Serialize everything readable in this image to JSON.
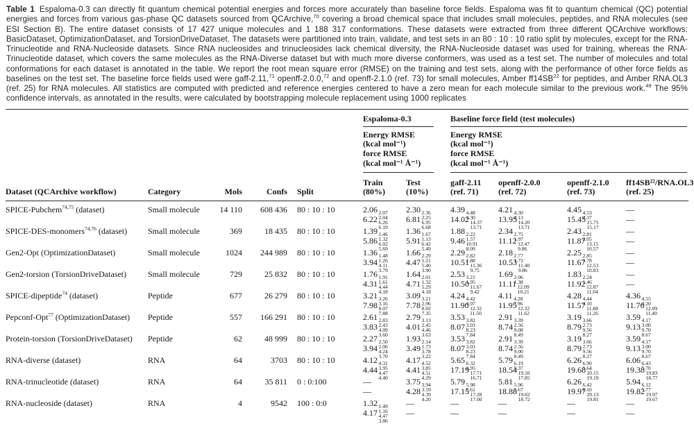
{
  "caption": {
    "segments": [
      {
        "b": "Table 1"
      },
      {
        "t": "Espaloma-0.3 can directly fit quantum chemical potential energies and forces more accurately than baseline force fields. Espaloma was fit to quantum chemical (QC) potential energies and forces from various gas-phase QC datasets sourced from QCArchive,"
      },
      {
        "s": "70"
      },
      {
        "t": " covering a broad chemical space that includes small molecules, peptides, and RNA molecules (see ESI Section B). The entire dataset consists of 17 427 unique molecules and 1 188 317 conformations. These datasets were extracted from three different QCArchive workflows: BasicDataset, OptimizationDataset, and TorsionDriveDataset. The datasets were partitioned into train, validate, and test sets in an 80 : 10 : 10 ratio split by molecules, except for the RNA-Trinucleotide and RNA-Nucleoside datasets. Since RNA nucleosides and trinucleosides lack chemical diversity, the RNA-Nucleoside dataset was used for training, whereas the RNA-Trinucleotide dataset, which covers the same molecules as the RNA-Diverse dataset but with much more diverse conformers, was used as a test set. The number of molecules and total conformations for each dataset is annotated in the table. We report the root mean square error (RMSE) on the training and test sets, along with the performance of other force fields as baselines on the test set. The baseline force fields used were gaff-2.11,"
      },
      {
        "s": "71"
      },
      {
        "t": " openff-2.0.0,"
      },
      {
        "s": "72"
      },
      {
        "t": " and openff-2.1.0 (ref. 73) for small molecules, Amber ff14SB"
      },
      {
        "s": "22"
      },
      {
        "t": " for peptides, and Amber RNA.OL3 (ref. 25) for RNA molecules. All statistics are computed with predicted and reference energies centered to have a zero mean for each molecule similar to the previous work."
      },
      {
        "s": "49"
      },
      {
        "t": " The 95% confidence intervals, as annotated in the results, were calculated by bootstrapping molecule replacement using 1000 replicates"
      }
    ]
  },
  "header": {
    "espaloma_group": "Espaloma-0.3",
    "baseline_group": "Baseline force field (test molecules)",
    "rmse_lines": [
      "Energy RMSE",
      "(kcal mol⁻¹)",
      "force RMSE",
      "(kcal mol⁻¹ Å⁻¹)"
    ],
    "columns_left": [
      "Dataset (QCArchive workflow)",
      "Category",
      "Mols",
      "Confs",
      "Split"
    ],
    "columns_values": [
      [
        "Train",
        "(80%)"
      ],
      [
        "Test",
        "(10%)"
      ],
      [
        "gaff-2.11",
        "(ref. 71)"
      ],
      [
        "openff-2.0.0",
        "(ref. 72)"
      ],
      [
        "openff-2.1.0",
        "(ref. 73)"
      ],
      [
        "ff14SB²²/RNA.OL3",
        "(ref. 25)"
      ]
    ]
  },
  "rows": [
    {
      "dataset": {
        "name": "SPICE-Pubchem",
        "sup": "74,75",
        "tail": " (dataset)"
      },
      "category": "Small molecule",
      "mols": "14 110",
      "confs": "608 436",
      "split": "80 : 10 : 10",
      "values": [
        {
          "e": [
            "2.06",
            "2.07",
            "2.04"
          ],
          "f": [
            "6.22",
            "6.26",
            "6.19"
          ]
        },
        {
          "e": [
            "2.30",
            "2.36",
            "2.25"
          ],
          "f": [
            "6.81",
            "6.95",
            "6.68"
          ]
        },
        {
          "e": [
            "4.39",
            "4.48",
            "4.30"
          ],
          "f": [
            "14.02",
            "14.37",
            "13.71"
          ]
        },
        {
          "e": [
            "4.21",
            "4.30",
            "4.13"
          ],
          "f": [
            "13.95",
            "14.20",
            "13.71"
          ]
        },
        {
          "e": [
            "4.45",
            "4.53",
            "4.37"
          ],
          "f": [
            "15.45",
            "15.75",
            "15.17"
          ]
        },
        {
          "e": "—",
          "f": "—"
        }
      ]
    },
    {
      "dataset": {
        "name": "SPICE-DES-monomers",
        "sup": "74,76",
        "tail": " (dataset)"
      },
      "category": "Small molecule",
      "mols": "369",
      "confs": "18 435",
      "split": "80 : 10 : 10",
      "values": [
        {
          "e": [
            "1.39",
            "1.46",
            "1.32"
          ],
          "f": [
            "5.86",
            "6.02",
            "5.69"
          ]
        },
        {
          "e": [
            "1.36",
            "1.67",
            "1.13"
          ],
          "f": [
            "5.91",
            "6.42",
            "5.49"
          ]
        },
        {
          "e": [
            "1.88",
            "2.22",
            "1.57"
          ],
          "f": [
            "9.46",
            "10.91",
            "8.09"
          ]
        },
        {
          "e": [
            "2.34",
            "2.75",
            "1.97"
          ],
          "f": [
            "11.12",
            "12.47",
            "9.86"
          ]
        },
        {
          "e": [
            "2.43",
            "2.81",
            "2.05"
          ],
          "f": [
            "11.87",
            "13.15",
            "10.57"
          ]
        },
        {
          "e": "—",
          "f": "—"
        }
      ]
    },
    {
      "dataset": {
        "name": "Gen2-Opt",
        "sup": "",
        "tail": " (OptimizationDataset)"
      },
      "category": "Small molecule",
      "mols": "1024",
      "confs": "244 989",
      "split": "80 : 10 : 10",
      "values": [
        {
          "e": [
            "1.36",
            "1.48",
            "1.26"
          ],
          "f": [
            "3.94",
            "4.11",
            "3.79"
          ]
        },
        {
          "e": [
            "1.66",
            "2.29",
            "1.21"
          ],
          "f": [
            "4.47",
            "5.40",
            "3.90"
          ]
        },
        {
          "e": [
            "2.29",
            "2.82",
            "1.88"
          ],
          "f": [
            "10.51",
            "11.36",
            "9.75"
          ]
        },
        {
          "e": [
            "2.18",
            "2.77",
            "1.73"
          ],
          "f": [
            "10.53",
            "11.40",
            "9.86"
          ]
        },
        {
          "e": [
            "2.25",
            "2.85",
            "1.78"
          ],
          "f": [
            "11.67",
            "12.53",
            "10.83"
          ]
        },
        {
          "e": "—",
          "f": "—"
        }
      ]
    },
    {
      "dataset": {
        "name": "Gen2-torsion",
        "sup": "",
        "tail": " (TorsionDriveDataset)"
      },
      "category": "Small molecule",
      "mols": "729",
      "confs": "25 832",
      "split": "80 : 10 : 10",
      "values": [
        {
          "e": [
            "1.76",
            "1.91",
            "1.61"
          ],
          "f": [
            "4.31",
            "4.44",
            "4.18"
          ]
        },
        {
          "e": [
            "1.64",
            "2.01",
            "1.32"
          ],
          "f": [
            "4.71",
            "5.29",
            "4.18"
          ]
        },
        {
          "e": [
            "2.53",
            "3.21",
            "1.95"
          ],
          "f": [
            "10.50",
            "11.67",
            "9.42"
          ]
        },
        {
          "e": [
            "1.69",
            "2.06",
            "1.38"
          ],
          "f": [
            "11.11",
            "12.09",
            "10.21"
          ]
        },
        {
          "e": [
            "1.83",
            "2.24",
            "1.46"
          ],
          "f": [
            "11.92",
            "12.87",
            "11.04"
          ]
        },
        {
          "e": "—",
          "f": "—"
        }
      ]
    },
    {
      "dataset": {
        "name": "SPICE-dipeptide",
        "sup": "74",
        "tail": " (dataset)"
      },
      "category": "Peptide",
      "mols": "677",
      "confs": "26 279",
      "split": "80 : 10 : 10",
      "values": [
        {
          "e": [
            "3.21",
            "3.26",
            "3.16"
          ],
          "f": [
            "7.98",
            "8.07",
            "7.88"
          ]
        },
        {
          "e": [
            "3.09",
            "3.21",
            "2.96"
          ],
          "f": [
            "7.78",
            "8.02",
            "7.35"
          ]
        },
        {
          "e": [
            "4.24",
            "4.42",
            "4.07"
          ],
          "f": [
            "11.90",
            "12.32",
            "11.50"
          ]
        },
        {
          "e": [
            "4.11",
            "4.28",
            "3.96"
          ],
          "f": [
            "11.95",
            "12.32",
            "11.62"
          ]
        },
        {
          "e": [
            "4.28",
            "4.44",
            "4.10"
          ],
          "f": [
            "11.57",
            "11.88",
            "11.26"
          ]
        },
        {
          "e": [
            "4.36",
            "4.55",
            "4.20"
          ],
          "f": [
            "11.76",
            "12.09",
            "11.40"
          ]
        }
      ]
    },
    {
      "dataset": {
        "name": "Pepconf-Opt",
        "sup": "77",
        "tail": " (OptimizationDataset)"
      },
      "category": "Peptide",
      "mols": "557",
      "confs": "166 291",
      "split": "80 : 10 : 10",
      "values": [
        {
          "e": [
            "2.61",
            "2.83",
            "2.43"
          ],
          "f": [
            "3.83",
            "4.09",
            "3.60"
          ]
        },
        {
          "e": [
            "2.79",
            "3.13",
            "2.45"
          ],
          "f": [
            "4.01",
            "4.46",
            "3.63"
          ]
        },
        {
          "e": [
            "3.53",
            "3.82",
            "3.03"
          ],
          "f": [
            "8.07",
            "8.23",
            "7.84"
          ]
        },
        {
          "e": [
            "2.91",
            "3.39",
            "2.56"
          ],
          "f": [
            "8.74",
            "9.08",
            "8.49"
          ]
        },
        {
          "e": [
            "3.19",
            "3.66",
            "2.73"
          ],
          "f": [
            "8.79",
            "9.56",
            "8.27"
          ]
        },
        {
          "e": [
            "3.59",
            "4.17",
            "3.00"
          ],
          "f": [
            "9.13",
            "9.70",
            "8.67"
          ]
        }
      ]
    },
    {
      "dataset": {
        "name": "Protein-torsion",
        "sup": "",
        "tail": " (TorsionDriveDataset)"
      },
      "category": "Peptide",
      "mols": "62",
      "confs": "48 999",
      "split": "80 : 10 : 10",
      "values": [
        {
          "e": [
            "2.27",
            "2.50",
            "2.06"
          ],
          "f": [
            "3.94",
            "4.24",
            "3.70"
          ]
        },
        {
          "e": [
            "1.93",
            "2.14",
            "1.73"
          ],
          "f": [
            "3.49",
            "3.78",
            "3.22"
          ]
        },
        {
          "e": [
            "3.53",
            "3.82",
            "3.03"
          ],
          "f": [
            "8.07",
            "8.23",
            "7.84"
          ]
        },
        {
          "e": [
            "2.91",
            "3.39",
            "2.56"
          ],
          "f": [
            "8.74",
            "9.00",
            "8.49"
          ]
        },
        {
          "e": [
            "3.19",
            "3.66",
            "2.73"
          ],
          "f": [
            "8.79",
            "9.56",
            "8.27"
          ]
        },
        {
          "e": [
            "3.59",
            "4.17",
            "3.00"
          ],
          "f": [
            "9.13",
            "9.70",
            "8.67"
          ]
        }
      ]
    },
    {
      "dataset": {
        "name": "RNA-diverse",
        "sup": "",
        "tail": " (dataset)"
      },
      "category": "RNA",
      "mols": "64",
      "confs": "3703",
      "split": "80 : 10 : 10",
      "values": [
        {
          "e": [
            "4.12",
            "4.31",
            "3.95"
          ],
          "f": [
            "4.44",
            "4.47",
            "4.40"
          ]
        },
        {
          "e": [
            "4.17",
            "4.52",
            "3.85"
          ],
          "f": [
            "4.41",
            "4.51",
            "4.29"
          ]
        },
        {
          "e": [
            "5.65",
            "6.32",
            "4.95"
          ],
          "f": [
            "17.19",
            "17.71",
            "16.71"
          ]
        },
        {
          "e": [
            "5.79",
            "6.19",
            "5.37"
          ],
          "f": [
            "18.54",
            "19.10",
            "17.85"
          ]
        },
        {
          "e": [
            "6.26",
            "6.90",
            "5.64"
          ],
          "f": [
            "19.68",
            "20.15",
            "19.19"
          ]
        },
        {
          "e": [
            "6.06",
            "6.43",
            "5.70"
          ],
          "f": [
            "19.38",
            "19.83",
            "18.77"
          ]
        }
      ]
    },
    {
      "dataset": {
        "name": "RNA-trinucleotide",
        "sup": "",
        "tail": " (dataset)"
      },
      "category": "RNA",
      "mols": "64",
      "confs": "35 811",
      "split": "0 : 0:100",
      "values": [
        {
          "e": "—",
          "f": "—"
        },
        {
          "e": [
            "3.75",
            "3.94",
            "3.59"
          ],
          "f": [
            "4.28",
            "4.39",
            "4.20"
          ]
        },
        {
          "e": [
            "5.79",
            "5.98",
            "5.61"
          ],
          "f": [
            "17.15",
            "17.28",
            "17.00"
          ]
        },
        {
          "e": [
            "5.81",
            "5.96",
            "5.67"
          ],
          "f": [
            "18.88",
            "19.02",
            "18.72"
          ]
        },
        {
          "e": [
            "6.26",
            "6.42",
            "6.10"
          ],
          "f": [
            "19.97",
            "20.13",
            "19.81"
          ]
        },
        {
          "e": [
            "5.94",
            "6.12",
            "5.77"
          ],
          "f": [
            "19.82",
            "19.97",
            "19.67"
          ]
        }
      ]
    },
    {
      "dataset": {
        "name": "RNA-nucleoside",
        "sup": "",
        "tail": " (dataset)"
      },
      "category": "RNA",
      "mols": "4",
      "confs": "9542",
      "split": "100 : 0:0",
      "values": [
        {
          "e": [
            "1.32",
            "1.49",
            "1.16"
          ],
          "f": [
            "4.17",
            "4.47",
            "3.86"
          ]
        },
        {
          "e": "—",
          "f": "—"
        },
        {
          "e": "—",
          "f": "—"
        },
        {
          "e": "—",
          "f": "—"
        },
        {
          "e": "—",
          "f": "—"
        },
        {
          "e": "—",
          "f": "—"
        }
      ]
    }
  ]
}
